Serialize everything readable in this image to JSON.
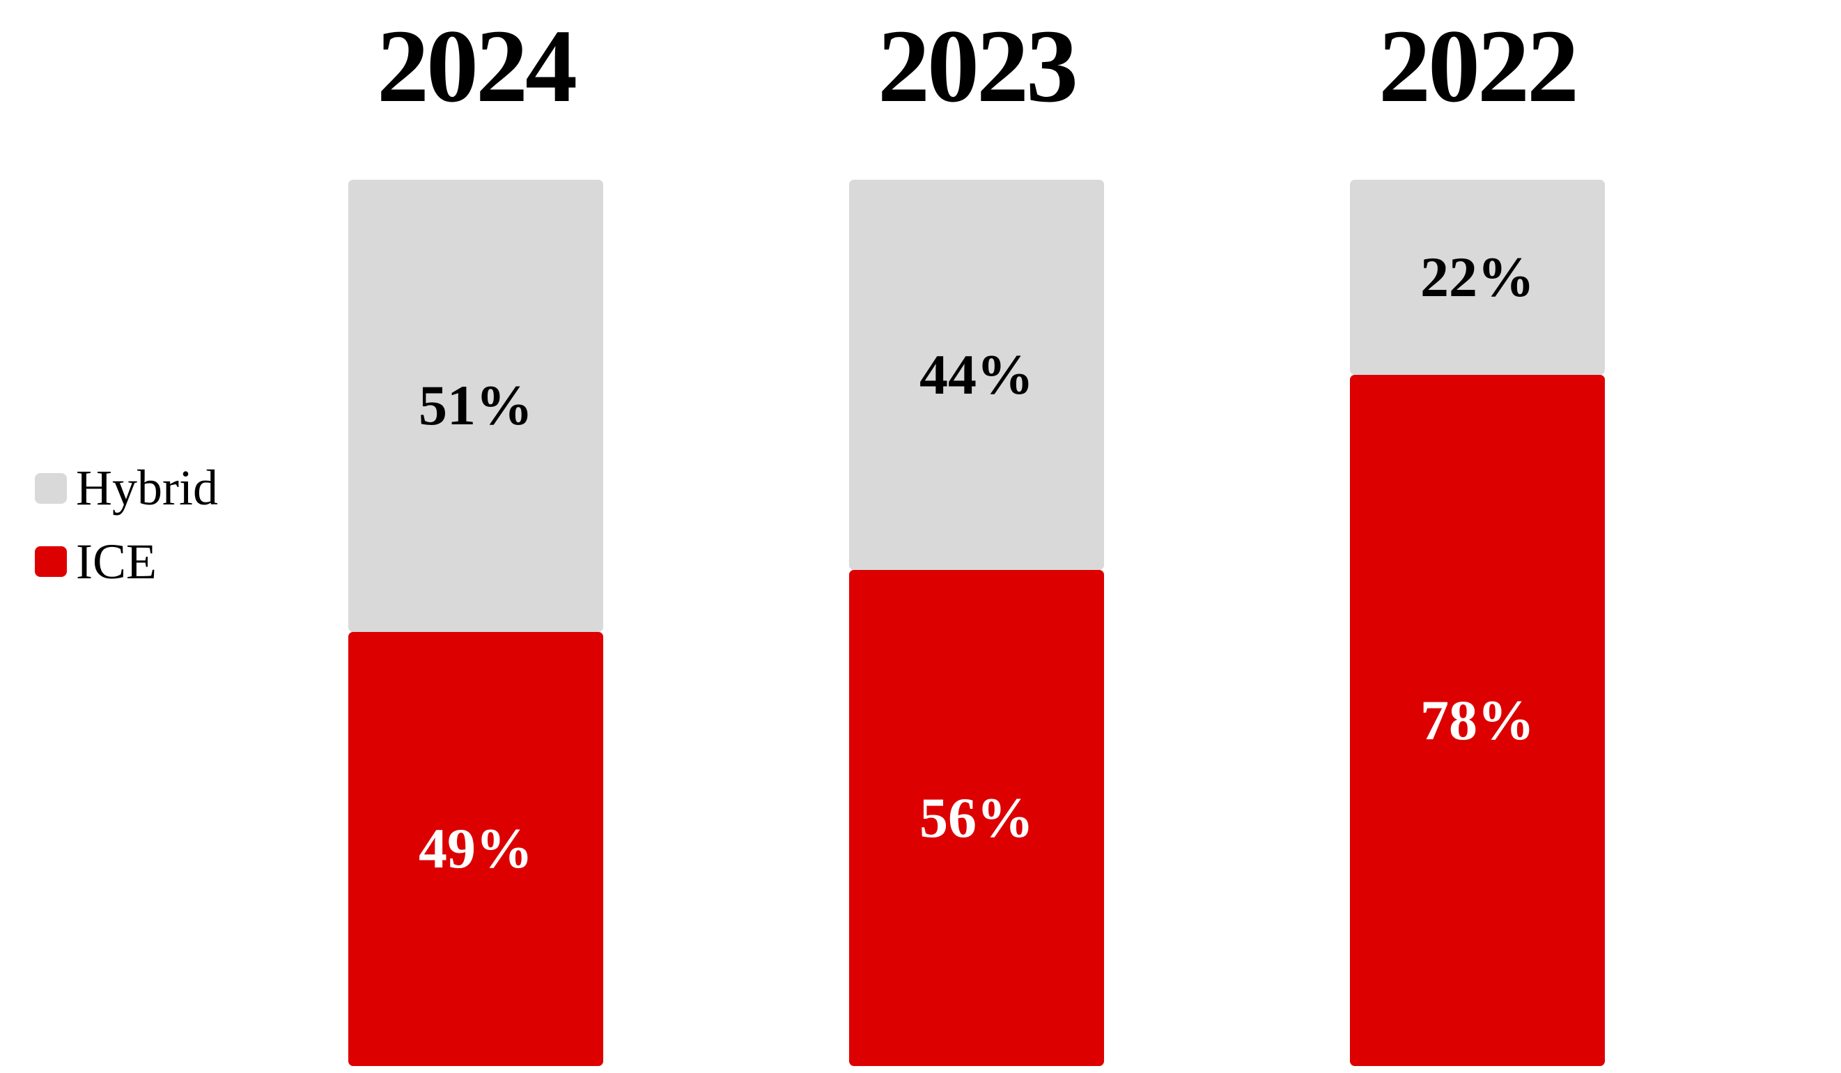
{
  "colors": {
    "background": "#FFFFFF",
    "hybrid": "#D9D9D9",
    "ice": "#DD0000",
    "label_on_hybrid": "#000000",
    "label_on_ice": "#FFFFFF",
    "title_text": "#000000"
  },
  "legend": {
    "position": "left",
    "items": [
      {
        "label": "Hybrid",
        "color": "#D9D9D9"
      },
      {
        "label": "ICE",
        "color": "#DD0000"
      }
    ]
  },
  "chart_data": {
    "type": "bar",
    "subtype": "stacked-100-percent",
    "orientation": "vertical",
    "categories": [
      "2024",
      "2023",
      "2022"
    ],
    "series": [
      {
        "name": "Hybrid",
        "color": "#D9D9D9",
        "label_color": "#000000",
        "values": [
          51,
          44,
          22
        ]
      },
      {
        "name": "ICE",
        "color": "#DD0000",
        "label_color": "#FFFFFF",
        "values": [
          49,
          56,
          78
        ]
      }
    ],
    "stack_order_top_to_bottom": [
      "Hybrid",
      "ICE"
    ],
    "value_suffix": "%",
    "title": "",
    "xlabel": "",
    "ylabel": "",
    "ylim": [
      0,
      100
    ],
    "grid": false,
    "axes_visible": false,
    "legend_position": "left"
  }
}
